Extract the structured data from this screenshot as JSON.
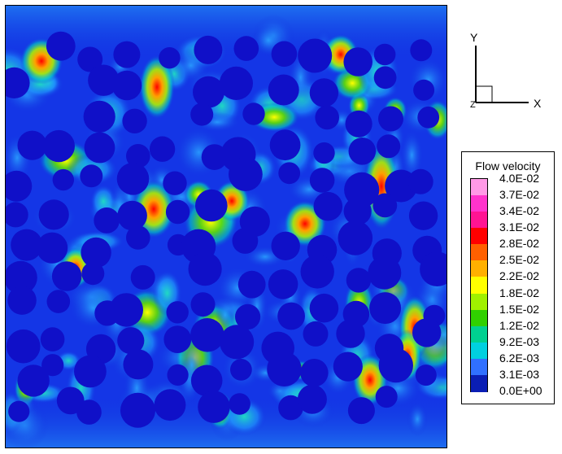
{
  "axes_triad": {
    "y_label": "Y",
    "x_label": "X",
    "z_label": "Z"
  },
  "legend": {
    "title": "Flow velocity",
    "labels": [
      "4.0E-02",
      "3.7E-02",
      "3.4E-02",
      "3.1E-02",
      "2.8E-02",
      "2.5E-02",
      "2.2E-02",
      "1.8E-02",
      "1.5E-02",
      "1.2E-02",
      "9.2E-03",
      "6.2E-03",
      "3.1E-03",
      "0.0E+00"
    ],
    "colors": [
      "#ffe6ff",
      "#ff99e6",
      "#ff33cc",
      "#ff1493",
      "#ff0000",
      "#ff6000",
      "#ffb000",
      "#ffff00",
      "#a0f000",
      "#30d000",
      "#00d090",
      "#00d0e0",
      "#3070ff",
      "#0a1eb4"
    ]
  },
  "colors": {
    "background_flow": "#1030e0",
    "particle": "#1010c8",
    "low_flow": "#1e60f0",
    "mid_flow": "#00d0d0",
    "high_flow": "#80f000",
    "peak_flow": "#ff0000"
  }
}
